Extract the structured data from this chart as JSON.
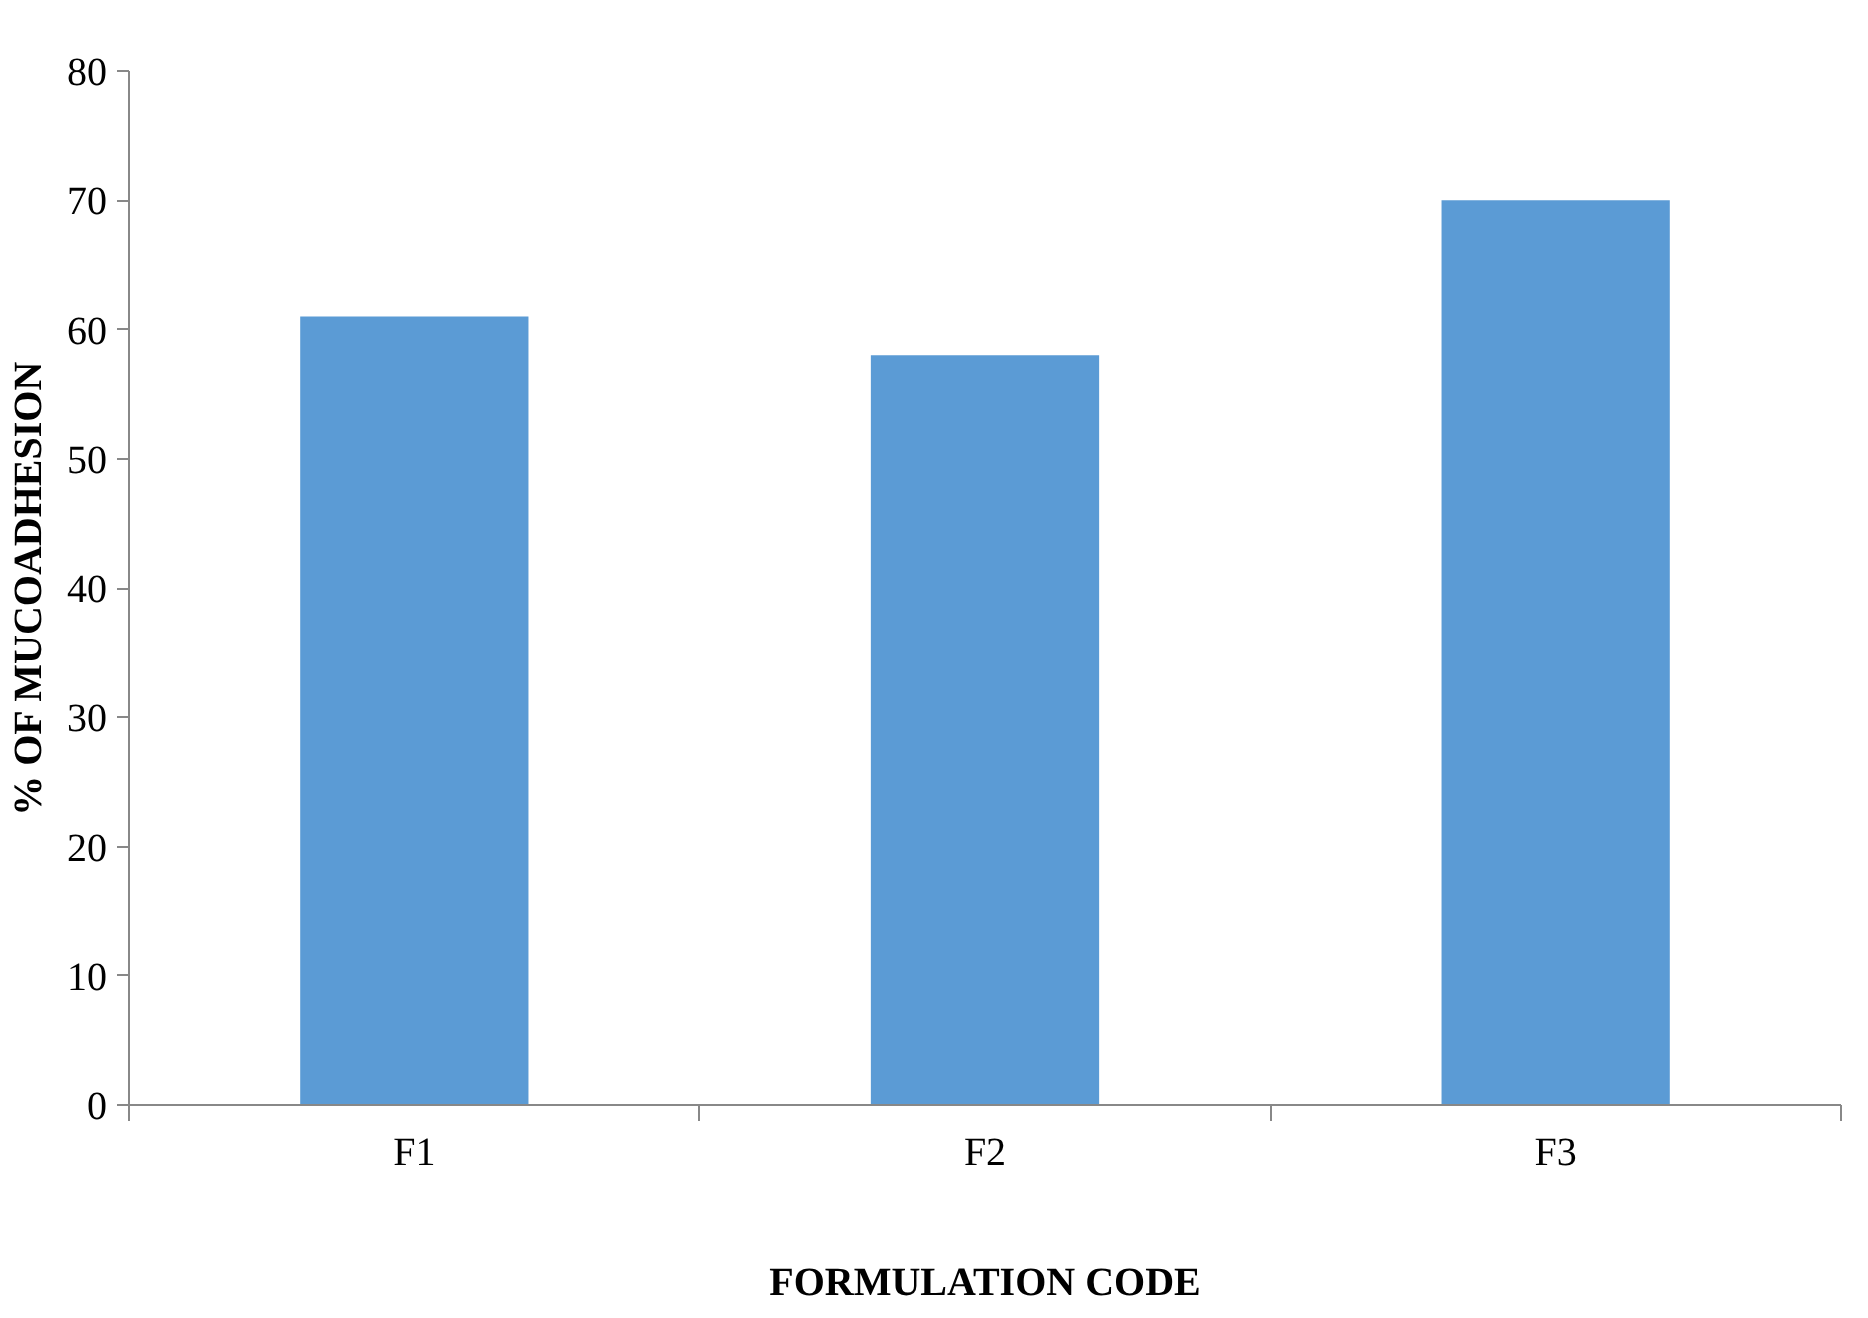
{
  "chart_data": {
    "type": "bar",
    "xlabel": "FORMULATION CODE",
    "ylabel": "% OF MUCOADHESION",
    "categories": [
      "F1",
      "F2",
      "F3"
    ],
    "values": [
      61,
      58,
      70
    ],
    "color": "#5b9bd5",
    "ylim": [
      0,
      80
    ],
    "yticks": [
      0,
      10,
      20,
      30,
      40,
      50,
      60,
      70,
      80
    ],
    "grid": false
  }
}
